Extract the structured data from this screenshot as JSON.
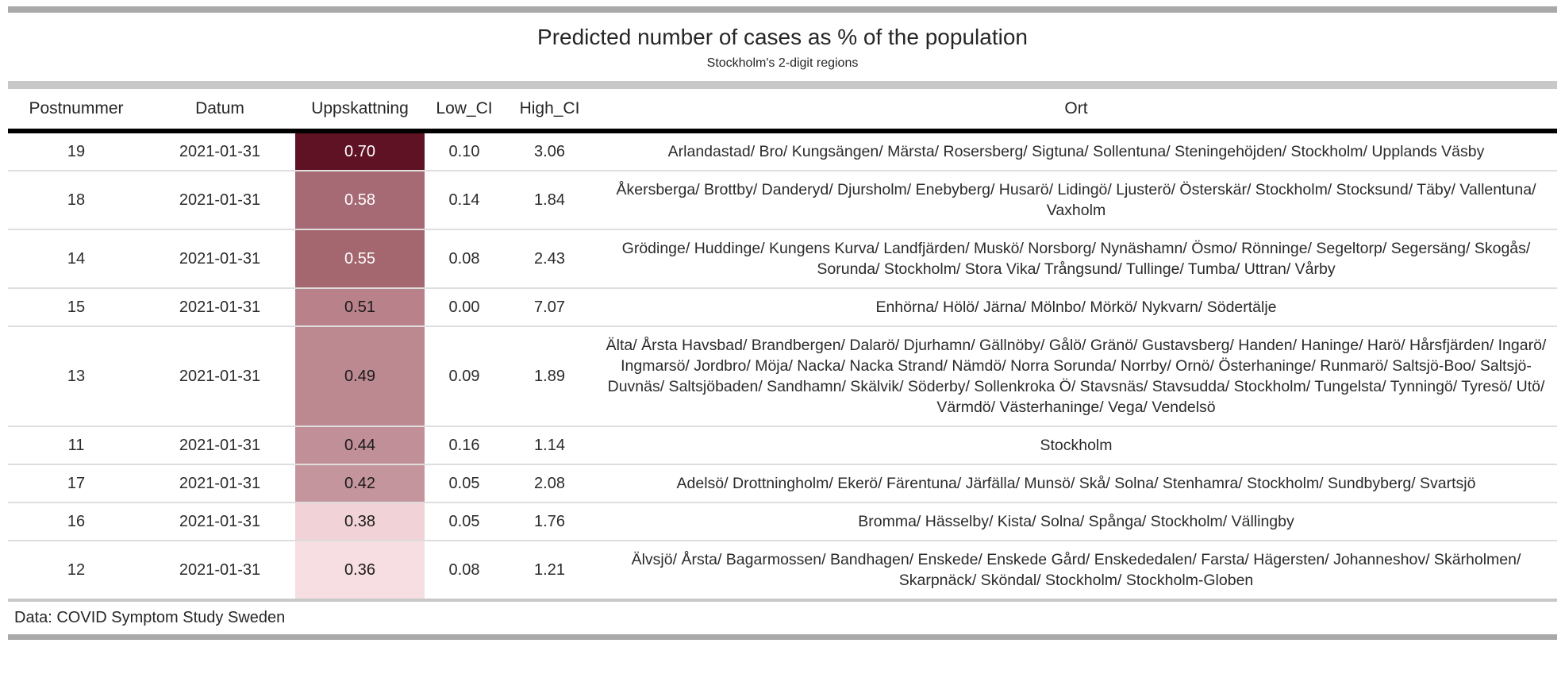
{
  "chart_data": {
    "type": "table",
    "title": "Predicted number of cases as % of the population",
    "subtitle": "Stockholm's 2-digit regions",
    "columns": [
      "Postnummer",
      "Datum",
      "Uppskattning",
      "Low_CI",
      "High_CI",
      "Ort"
    ],
    "footer": "Data: COVID Symptom Study Sweden",
    "heatmap_column": "Uppskattning",
    "heatmap_scale": {
      "low_color": "#f7dee2",
      "high_color": "#5e1224"
    },
    "rows": [
      {
        "postnummer": "19",
        "datum": "2021-01-31",
        "uppskattning": "0.70",
        "low_ci": "0.10",
        "high_ci": "3.06",
        "bg": "#5e1224",
        "fg": "#ffffff",
        "ort": "Arlandastad/ Bro/ Kungsängen/ Märsta/ Rosersberg/ Sigtuna/ Sollentuna/ Steningehöjden/ Stockholm/ Upplands Väsby"
      },
      {
        "postnummer": "18",
        "datum": "2021-01-31",
        "uppskattning": "0.58",
        "low_ci": "0.14",
        "high_ci": "1.84",
        "bg": "#a66a74",
        "fg": "#ffffff",
        "ort": "Åkersberga/ Brottby/ Danderyd/ Djursholm/ Enebyberg/ Husarö/ Lidingö/ Ljusterö/ Österskär/ Stockholm/ Stocksund/ Täby/ Vallentuna/ Vaxholm"
      },
      {
        "postnummer": "14",
        "datum": "2021-01-31",
        "uppskattning": "0.55",
        "low_ci": "0.08",
        "high_ci": "2.43",
        "bg": "#a4666f",
        "fg": "#ffffff",
        "ort": "Grödinge/ Huddinge/ Kungens Kurva/ Landfjärden/ Muskö/ Norsborg/ Nynäshamn/ Ösmo/ Rönninge/ Segeltorp/ Segersäng/ Skogås/ Sorunda/ Stockholm/ Stora Vika/ Trångsund/ Tullinge/ Tumba/ Uttran/ Vårby"
      },
      {
        "postnummer": "15",
        "datum": "2021-01-31",
        "uppskattning": "0.51",
        "low_ci": "0.00",
        "high_ci": "7.07",
        "bg": "#b9828a",
        "fg": "#1a1a1a",
        "ort": "Enhörna/ Hölö/ Järna/ Mölnbo/ Mörkö/ Nykvarn/ Södertälje"
      },
      {
        "postnummer": "13",
        "datum": "2021-01-31",
        "uppskattning": "0.49",
        "low_ci": "0.09",
        "high_ci": "1.89",
        "bg": "#bd8990",
        "fg": "#1a1a1a",
        "ort": "Älta/ Årsta Havsbad/ Brandbergen/ Dalarö/ Djurhamn/ Gällnöby/ Gålö/ Gränö/ Gustavsberg/ Handen/ Haninge/ Harö/ Hårsfjärden/ Ingarö/ Ingmarsö/ Jordbro/ Möja/ Nacka/ Nacka Strand/ Nämdö/ Norra Sorunda/ Norrby/ Ornö/ Österhaninge/ Runmarö/ Saltsjö-Boo/ Saltsjö-Duvnäs/ Saltsjöbaden/ Sandhamn/ Skälvik/ Söderby/ Sollenkroka Ö/ Stavsnäs/ Stavsudda/ Stockholm/ Tungelsta/ Tynningö/ Tyresö/ Utö/ Värmdö/ Västerhaninge/ Vega/ Vendelsö"
      },
      {
        "postnummer": "11",
        "datum": "2021-01-31",
        "uppskattning": "0.44",
        "low_ci": "0.16",
        "high_ci": "1.14",
        "bg": "#c18f98",
        "fg": "#1a1a1a",
        "ort": "Stockholm"
      },
      {
        "postnummer": "17",
        "datum": "2021-01-31",
        "uppskattning": "0.42",
        "low_ci": "0.05",
        "high_ci": "2.08",
        "bg": "#c4959c",
        "fg": "#1a1a1a",
        "ort": "Adelsö/ Drottningholm/ Ekerö/ Färentuna/ Järfälla/ Munsö/ Skå/ Solna/ Stenhamra/ Stockholm/ Sundbyberg/ Svartsjö"
      },
      {
        "postnummer": "16",
        "datum": "2021-01-31",
        "uppskattning": "0.38",
        "low_ci": "0.05",
        "high_ci": "1.76",
        "bg": "#f0d2d7",
        "fg": "#1a1a1a",
        "ort": "Bromma/ Hässelby/ Kista/ Solna/ Spånga/ Stockholm/ Vällingby"
      },
      {
        "postnummer": "12",
        "datum": "2021-01-31",
        "uppskattning": "0.36",
        "low_ci": "0.08",
        "high_ci": "1.21",
        "bg": "#f7dee2",
        "fg": "#1a1a1a",
        "ort": "Älvsjö/ Årsta/ Bagarmossen/ Bandhagen/ Enskede/ Enskede Gård/ Enskededalen/ Farsta/ Hägersten/ Johanneshov/ Skärholmen/ Skarpnäck/ Sköndal/ Stockholm/ Stockholm-Globen"
      }
    ]
  }
}
